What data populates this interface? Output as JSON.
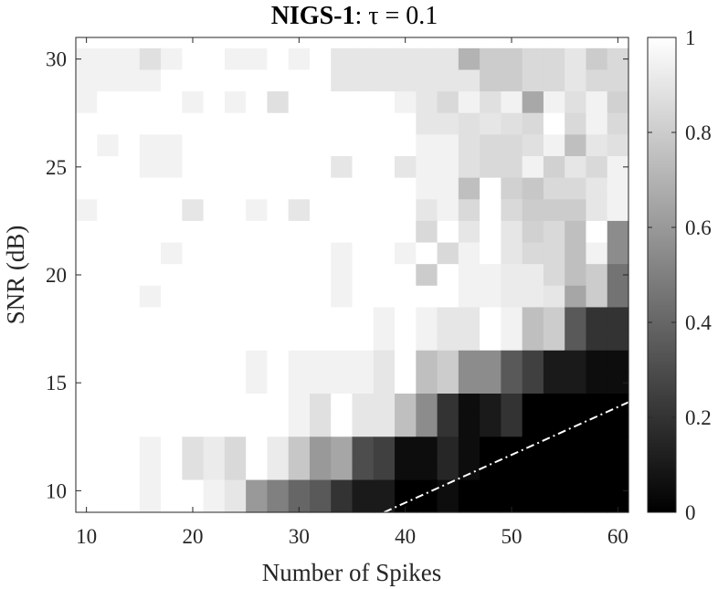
{
  "chart_data": {
    "type": "heatmap",
    "title": "NIGS-1",
    "title_suffix": ": τ = 0.1",
    "xlabel": "Number of Spikes",
    "ylabel": "SNR (dB)",
    "x_ticks": [
      "10",
      "20",
      "30",
      "40",
      "50",
      "60"
    ],
    "y_ticks": [
      "10",
      "15",
      "20",
      "25",
      "30"
    ],
    "colorbar_ticks": [
      "0",
      "0.2",
      "0.4",
      "0.6",
      "0.8",
      "1"
    ],
    "colormap": "gray",
    "x": [
      10,
      12,
      14,
      16,
      18,
      20,
      22,
      24,
      26,
      28,
      30,
      32,
      34,
      36,
      38,
      40,
      42,
      44,
      46,
      48,
      50,
      52,
      54,
      56,
      58,
      60
    ],
    "y": [
      30,
      29,
      28,
      27,
      26,
      25,
      24,
      23,
      22,
      21,
      20,
      19,
      18,
      17,
      16,
      15,
      14,
      13,
      12,
      11,
      10,
      9
    ],
    "xlim": [
      9,
      61
    ],
    "ylim": [
      9,
      31
    ],
    "clim": [
      0,
      1
    ],
    "values": [
      [
        0.95,
        0.95,
        0.95,
        0.88,
        0.95,
        1,
        1,
        0.95,
        0.95,
        1,
        0.95,
        1,
        0.9,
        0.9,
        0.9,
        0.9,
        0.9,
        0.9,
        0.7,
        0.8,
        0.8,
        0.85,
        0.85,
        0.9,
        0.8,
        0.85
      ],
      [
        0.95,
        0.95,
        0.95,
        0.95,
        1,
        1,
        1,
        1,
        1,
        1,
        1,
        1,
        0.9,
        0.9,
        0.9,
        0.9,
        0.9,
        0.9,
        0.9,
        0.8,
        0.8,
        0.85,
        0.85,
        0.9,
        0.85,
        0.85
      ],
      [
        0.95,
        1,
        1,
        1,
        1,
        0.95,
        1,
        0.95,
        1,
        0.88,
        1,
        1,
        1,
        1,
        1,
        0.95,
        0.9,
        0.85,
        0.95,
        0.88,
        0.95,
        0.66,
        0.95,
        0.88,
        0.95,
        0.82
      ],
      [
        1,
        1,
        1,
        1,
        1,
        1,
        1,
        1,
        1,
        1,
        1,
        1,
        1,
        1,
        1,
        1,
        0.9,
        0.9,
        0.88,
        0.9,
        0.88,
        0.85,
        1,
        0.85,
        0.95,
        0.85
      ],
      [
        1,
        0.95,
        1,
        0.95,
        0.95,
        1,
        1,
        1,
        1,
        1,
        1,
        1,
        1,
        1,
        1,
        1,
        0.95,
        0.95,
        0.88,
        0.85,
        0.85,
        0.88,
        0.95,
        0.75,
        0.9,
        0.88
      ],
      [
        1,
        1,
        1,
        0.95,
        0.95,
        1,
        1,
        1,
        1,
        1,
        1,
        1,
        0.9,
        1,
        1,
        0.9,
        0.95,
        0.95,
        0.88,
        0.85,
        0.85,
        0.95,
        0.82,
        0.9,
        0.85,
        0.95
      ],
      [
        1,
        1,
        1,
        1,
        1,
        1,
        1,
        1,
        1,
        1,
        1,
        1,
        1,
        1,
        1,
        1,
        0.95,
        0.95,
        0.75,
        1,
        0.82,
        0.78,
        0.85,
        0.85,
        0.9,
        0.95
      ],
      [
        0.95,
        1,
        1,
        1,
        1,
        0.9,
        1,
        1,
        0.95,
        1,
        0.9,
        1,
        1,
        1,
        1,
        1,
        0.9,
        0.95,
        0.85,
        1,
        0.85,
        0.8,
        0.8,
        0.8,
        0.9,
        0.95
      ],
      [
        1,
        1,
        1,
        1,
        1,
        1,
        1,
        1,
        1,
        1,
        1,
        1,
        1,
        1,
        1,
        1,
        0.85,
        1,
        0.9,
        1,
        0.9,
        0.82,
        0.85,
        0.75,
        1,
        0.55
      ],
      [
        1,
        1,
        1,
        1,
        0.95,
        1,
        1,
        1,
        1,
        1,
        1,
        1,
        0.95,
        1,
        1,
        0.95,
        1,
        0.85,
        0.95,
        1,
        0.9,
        0.85,
        0.85,
        0.75,
        0.95,
        0.55
      ],
      [
        1,
        1,
        1,
        1,
        1,
        1,
        1,
        1,
        1,
        1,
        1,
        1,
        0.95,
        1,
        1,
        1,
        0.8,
        1,
        0.95,
        0.95,
        0.92,
        0.92,
        0.85,
        0.75,
        0.8,
        0.45
      ],
      [
        1,
        1,
        1,
        0.95,
        1,
        1,
        1,
        1,
        1,
        1,
        1,
        1,
        0.95,
        1,
        1,
        1,
        1,
        1,
        0.95,
        0.95,
        0.92,
        0.92,
        0.9,
        0.65,
        0.8,
        0.45
      ],
      [
        1,
        1,
        1,
        1,
        1,
        1,
        1,
        1,
        1,
        1,
        1,
        1,
        1,
        1,
        0.95,
        1,
        0.95,
        0.9,
        0.9,
        1,
        0.95,
        0.75,
        0.8,
        0.35,
        0.2,
        0.2
      ],
      [
        1,
        1,
        1,
        1,
        1,
        1,
        1,
        1,
        1,
        1,
        1,
        1,
        1,
        1,
        0.95,
        1,
        0.95,
        0.9,
        0.9,
        1,
        0.95,
        0.75,
        0.8,
        0.35,
        0.2,
        0.2
      ],
      [
        1,
        1,
        1,
        1,
        1,
        1,
        1,
        1,
        0.95,
        1,
        0.95,
        0.95,
        0.95,
        0.95,
        0.9,
        1,
        0.75,
        0.8,
        0.55,
        0.55,
        0.35,
        0.25,
        0.1,
        0.1,
        0.05,
        0.05
      ],
      [
        1,
        1,
        1,
        1,
        1,
        1,
        1,
        1,
        0.95,
        1,
        0.95,
        0.95,
        0.95,
        0.95,
        0.9,
        1,
        0.75,
        0.8,
        0.55,
        0.55,
        0.35,
        0.25,
        0.1,
        0.1,
        0.05,
        0.05
      ],
      [
        1,
        1,
        1,
        1,
        1,
        1,
        1,
        1,
        1,
        1,
        0.95,
        0.88,
        1,
        0.9,
        0.9,
        0.75,
        0.55,
        0.2,
        0.05,
        0.1,
        0.2,
        0,
        0,
        0,
        0,
        0
      ],
      [
        1,
        1,
        1,
        1,
        1,
        1,
        1,
        1,
        1,
        1,
        0.95,
        0.88,
        1,
        0.9,
        0.9,
        0.75,
        0.55,
        0.2,
        0.05,
        0.1,
        0.2,
        0,
        0,
        0,
        0,
        0
      ],
      [
        1,
        1,
        1,
        0.95,
        1,
        0.88,
        0.92,
        0.85,
        1,
        0.92,
        0.78,
        0.6,
        0.65,
        0.3,
        0.25,
        0.05,
        0.05,
        0.15,
        0.05,
        0,
        0,
        0,
        0,
        0,
        0,
        0
      ],
      [
        1,
        1,
        1,
        0.95,
        1,
        0.88,
        0.92,
        0.85,
        1,
        0.92,
        0.78,
        0.6,
        0.65,
        0.3,
        0.25,
        0.05,
        0.05,
        0.15,
        0.05,
        0,
        0,
        0,
        0,
        0,
        0,
        0
      ],
      [
        1,
        1,
        1,
        0.95,
        1,
        1,
        0.95,
        0.9,
        0.6,
        0.5,
        0.4,
        0.35,
        0.2,
        0.1,
        0.1,
        0,
        0,
        0.05,
        0,
        0,
        0,
        0,
        0,
        0,
        0,
        0
      ],
      [
        1,
        1,
        1,
        0.95,
        1,
        1,
        0.95,
        0.9,
        0.6,
        0.5,
        0.4,
        0.35,
        0.2,
        0.1,
        0.1,
        0,
        0,
        0.05,
        0,
        0,
        0,
        0,
        0,
        0,
        0,
        0
      ]
    ],
    "boundary_line": {
      "style": "dash-dot",
      "color": "#ffffff",
      "points": [
        [
          38,
          9
        ],
        [
          61,
          14.1
        ]
      ]
    }
  }
}
